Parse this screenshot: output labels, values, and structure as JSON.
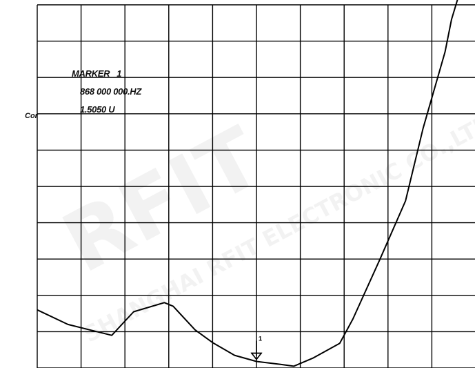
{
  "channel_label": "Cor",
  "marker": {
    "line1": "MARKER   1",
    "line2": "868 000 000.HZ",
    "line3": "1.5050 U"
  },
  "watermark": {
    "big": "RFIT",
    "small": "SHANGHAI RFIT ELECTRONIC CO.,LTD"
  },
  "colors": {
    "trace": "#000000",
    "grid": "#000000",
    "background": "#ffffff"
  },
  "chart_data": {
    "type": "line",
    "grid": true,
    "x_divisions": 10,
    "y_divisions": 10,
    "xlim": [
      0,
      10
    ],
    "ylim": [
      0,
      10
    ],
    "series": [
      {
        "x": [
          0.0,
          0.7,
          1.7,
          2.2,
          2.9,
          3.1,
          3.6,
          4.0,
          4.5,
          5.0,
          5.55,
          5.85,
          6.3,
          6.9,
          7.2,
          7.8,
          8.4,
          8.8,
          9.3,
          9.45,
          9.65
        ],
        "y": [
          1.6,
          1.2,
          0.9,
          1.55,
          1.8,
          1.7,
          1.05,
          0.7,
          0.35,
          0.18,
          0.1,
          0.05,
          0.28,
          0.68,
          1.35,
          2.95,
          4.6,
          6.6,
          8.7,
          9.6,
          10.4
        ]
      }
    ],
    "marker_x": 5.0,
    "marker_y": 0.18
  }
}
